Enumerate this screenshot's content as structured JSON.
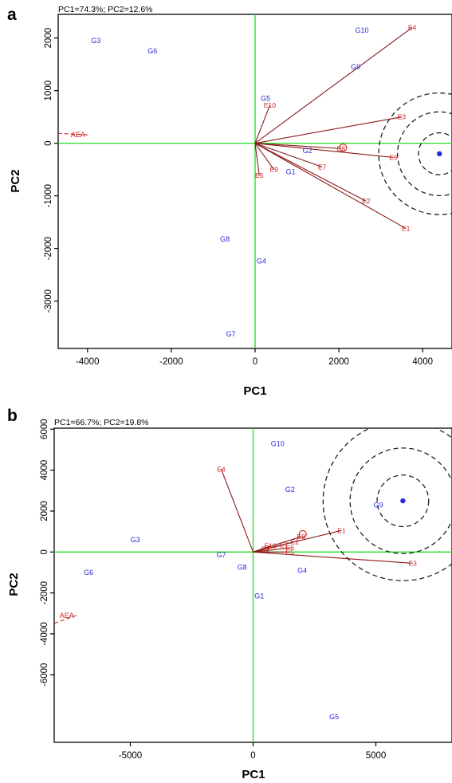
{
  "chart_data": [
    {
      "panel": "a",
      "type": "scatter",
      "pc_note": "PC1=74.3%; PC2=12.6%",
      "xlabel": "PC1",
      "ylabel": "PC2",
      "xlim": [
        -4700,
        4700
      ],
      "ylim": [
        -3900,
        2450
      ],
      "xticks": [
        -4000,
        -2000,
        0,
        2000,
        4000
      ],
      "yticks": [
        2000,
        1000,
        0,
        -1000,
        -2000,
        -3000
      ],
      "grid": false,
      "genotypes": [
        {
          "label": "G1",
          "x": 850,
          "y": -540
        },
        {
          "label": "G2",
          "x": 1250,
          "y": -140
        },
        {
          "label": "G3",
          "x": -3800,
          "y": 1950
        },
        {
          "label": "G4",
          "x": 150,
          "y": -2240
        },
        {
          "label": "G5",
          "x": 250,
          "y": 850
        },
        {
          "label": "G6",
          "x": -2450,
          "y": 1750
        },
        {
          "label": "G7",
          "x": -580,
          "y": -3630
        },
        {
          "label": "G8",
          "x": -720,
          "y": -1820
        },
        {
          "label": "G9",
          "x": 2400,
          "y": 1450
        },
        {
          "label": "G10",
          "x": 2550,
          "y": 2150
        }
      ],
      "environments": [
        {
          "label": "E1",
          "x": 3600,
          "y": -1620
        },
        {
          "label": "E2",
          "x": 2650,
          "y": -1100
        },
        {
          "label": "E3",
          "x": 3500,
          "y": 500
        },
        {
          "label": "E4",
          "x": 3750,
          "y": 2200
        },
        {
          "label": "E5",
          "x": 100,
          "y": -610
        },
        {
          "label": "E6",
          "x": 3300,
          "y": -270
        },
        {
          "label": "E7",
          "x": 1600,
          "y": -450
        },
        {
          "label": "E8",
          "x": 2050,
          "y": -100
        },
        {
          "label": "E9",
          "x": 450,
          "y": -500
        },
        {
          "label": "E10",
          "x": 350,
          "y": 720
        }
      ],
      "aea": {
        "label": "AEA",
        "x": -4000,
        "y": 160
      },
      "ideal": {
        "x": 4400,
        "y": -200
      },
      "circle_radii": [
        500,
        1000,
        1450
      ]
    },
    {
      "panel": "b",
      "type": "scatter",
      "pc_note": "PC1=66.7%; PC2=19.8%",
      "xlabel": "PC1",
      "ylabel": "PC2",
      "xlim": [
        -8100,
        8100
      ],
      "ylim": [
        -9300,
        6050
      ],
      "xticks": [
        -5000,
        0,
        5000
      ],
      "yticks": [
        6000,
        4000,
        2000,
        0,
        -2000,
        -4000,
        -6000
      ],
      "grid": false,
      "genotypes": [
        {
          "label": "G1",
          "x": 250,
          "y": -2150
        },
        {
          "label": "G2",
          "x": 1500,
          "y": 3050
        },
        {
          "label": "G3",
          "x": -4800,
          "y": 600
        },
        {
          "label": "G4",
          "x": 2000,
          "y": -900
        },
        {
          "label": "G5",
          "x": 3300,
          "y": -8050
        },
        {
          "label": "G6",
          "x": -6700,
          "y": -1000
        },
        {
          "label": "G7",
          "x": -1300,
          "y": -150
        },
        {
          "label": "G8",
          "x": -450,
          "y": -750
        },
        {
          "label": "G9",
          "x": 5100,
          "y": 2300
        },
        {
          "label": "G10",
          "x": 1000,
          "y": 5300
        }
      ],
      "environments": [
        {
          "label": "E1",
          "x": 3600,
          "y": 1050
        },
        {
          "label": "E2",
          "x": 1700,
          "y": 500
        },
        {
          "label": "E3",
          "x": 6500,
          "y": -550
        },
        {
          "label": "E4",
          "x": -1300,
          "y": 4050
        },
        {
          "label": "E5",
          "x": 1500,
          "y": 0
        },
        {
          "label": "E6",
          "x": 1500,
          "y": 200
        },
        {
          "label": "E7",
          "x": 1250,
          "y": 350
        },
        {
          "label": "E8",
          "x": 1950,
          "y": 750
        },
        {
          "label": "E9",
          "x": 500,
          "y": 150
        },
        {
          "label": "E10",
          "x": 700,
          "y": 300
        }
      ],
      "aea": {
        "label": "AEA",
        "x": -7200,
        "y": -3100
      },
      "ideal": {
        "x": 6100,
        "y": 2500
      },
      "circle_radii": [
        1050,
        2150,
        3250
      ]
    }
  ]
}
